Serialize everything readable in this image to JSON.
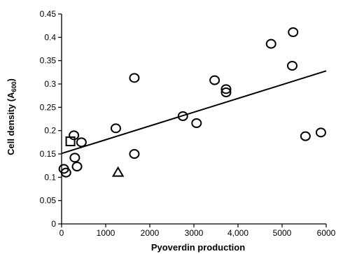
{
  "chart_data": {
    "type": "scatter",
    "title": "",
    "xlabel": "Pyoverdin production",
    "ylabel": "Cell density (A",
    "ylabel_subscript": "600",
    "ylabel_close": ")",
    "xlim": [
      0,
      6000
    ],
    "ylim": [
      0,
      0.45
    ],
    "x_ticks": [
      {
        "value": 0,
        "label": "0"
      },
      {
        "value": 1000,
        "label": "1000"
      },
      {
        "value": 2000,
        "label": "2000"
      },
      {
        "value": 3000,
        "label": "3000"
      },
      {
        "value": 4000,
        "label": "4,000"
      },
      {
        "value": 5000,
        "label": "5000"
      },
      {
        "value": 6000,
        "label": "6000"
      }
    ],
    "y_ticks": [
      {
        "value": 0,
        "label": "0"
      },
      {
        "value": 0.05,
        "label": "0.05"
      },
      {
        "value": 0.1,
        "label": "0.1"
      },
      {
        "value": 0.15,
        "label": "0.15"
      },
      {
        "value": 0.2,
        "label": "0.2"
      },
      {
        "value": 0.25,
        "label": "0.25"
      },
      {
        "value": 0.3,
        "label": "0.3"
      },
      {
        "value": 0.35,
        "label": "0.35"
      },
      {
        "value": 0.4,
        "label": "0.4"
      },
      {
        "value": 0.45,
        "label": "0.45"
      }
    ],
    "grid": false,
    "series": [
      {
        "marker": "circle",
        "points": [
          {
            "x": 50,
            "y": 0.118
          },
          {
            "x": 100,
            "y": 0.11
          },
          {
            "x": 280,
            "y": 0.19
          },
          {
            "x": 300,
            "y": 0.142
          },
          {
            "x": 350,
            "y": 0.123
          },
          {
            "x": 450,
            "y": 0.175
          },
          {
            "x": 1230,
            "y": 0.205
          },
          {
            "x": 1650,
            "y": 0.313
          },
          {
            "x": 1650,
            "y": 0.15
          },
          {
            "x": 2750,
            "y": 0.231
          },
          {
            "x": 3060,
            "y": 0.216
          },
          {
            "x": 3470,
            "y": 0.308
          },
          {
            "x": 3730,
            "y": 0.289
          },
          {
            "x": 3730,
            "y": 0.282
          },
          {
            "x": 4750,
            "y": 0.386
          },
          {
            "x": 5250,
            "y": 0.411
          },
          {
            "x": 5230,
            "y": 0.339
          },
          {
            "x": 5530,
            "y": 0.188
          },
          {
            "x": 5880,
            "y": 0.196
          }
        ]
      },
      {
        "marker": "square",
        "points": [
          {
            "x": 200,
            "y": 0.177
          }
        ]
      },
      {
        "marker": "triangle",
        "points": [
          {
            "x": 1280,
            "y": 0.11
          }
        ]
      }
    ],
    "trendline": {
      "x": [
        0,
        6000
      ],
      "y": [
        0.151,
        0.328
      ]
    },
    "colors": {
      "marker": "#000000",
      "line": "#000000",
      "axis": "#000000"
    }
  }
}
